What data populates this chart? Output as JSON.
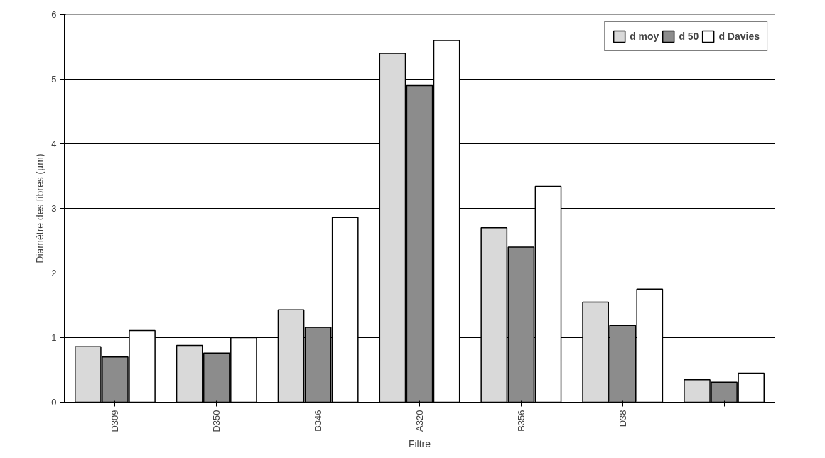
{
  "chart_data": {
    "type": "bar",
    "xlabel": "Filtre",
    "ylabel": "Diamètre des fibres (µm)",
    "categories": [
      "D309",
      "D350",
      "B346",
      "A320",
      "B356",
      "D38",
      null
    ],
    "series": [
      {
        "name": "d moy",
        "color": "#d9d9d9",
        "values": [
          0.86,
          0.88,
          1.43,
          5.4,
          2.7,
          1.55,
          0.35
        ]
      },
      {
        "name": "d 50",
        "color": "#8c8c8c",
        "values": [
          0.7,
          0.76,
          1.16,
          4.9,
          2.4,
          1.19,
          0.31
        ]
      },
      {
        "name": "d Davies",
        "color": "#ffffff",
        "values": [
          1.11,
          1.0,
          2.86,
          5.6,
          3.34,
          1.75,
          0.45
        ]
      }
    ],
    "ylim": [
      0,
      6
    ],
    "yticks": [
      0,
      1,
      2,
      3,
      4,
      5,
      6
    ],
    "grid": "y",
    "legend": "top right"
  }
}
